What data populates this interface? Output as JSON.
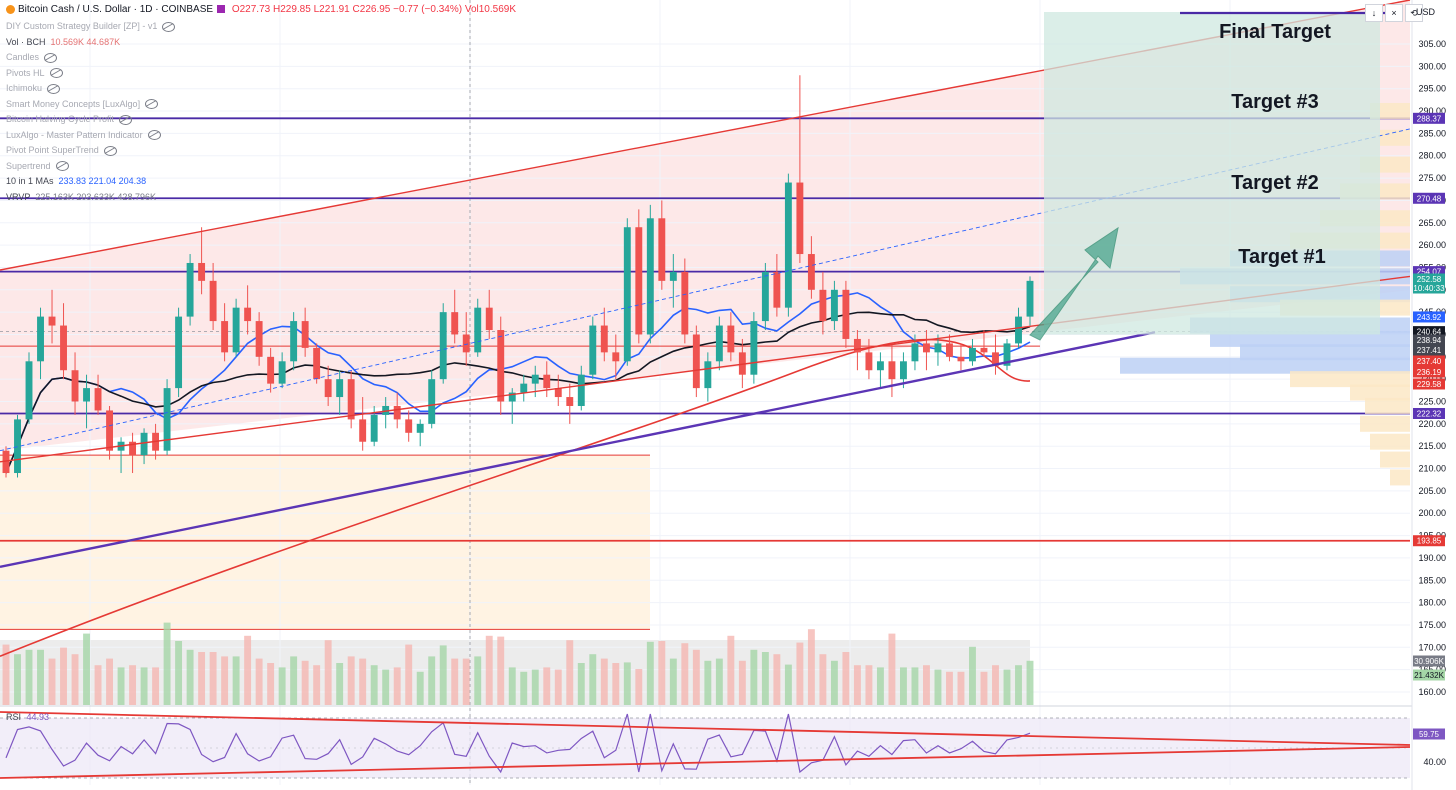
{
  "header": {
    "symbol": "Bitcoin Cash / U.S. Dollar · 1D · COINBASE",
    "open": "O227.73",
    "high": "H229.85",
    "low": "L221.91",
    "close": "C226.95",
    "change": "−0.77 (−0.34%)",
    "volume": "Vol10.569K"
  },
  "indicators": [
    {
      "name": "DIY Custom Strategy Builder [ZP] - v1",
      "values": ""
    },
    {
      "name": "Vol · BCH",
      "values": "10.569K  44.687K"
    },
    {
      "name": "Candles",
      "values": ""
    },
    {
      "name": "Pivots HL",
      "values": ""
    },
    {
      "name": "Ichimoku",
      "values": ""
    },
    {
      "name": "Smart Money Concepts [LuxAlgo]",
      "values": ""
    },
    {
      "name": "Bitcoin Halving Cycle Profit",
      "values": ""
    },
    {
      "name": "LuxAlgo - Master Pattern Indicator",
      "values": ""
    },
    {
      "name": "Pivot Point SuperTrend",
      "values": ""
    },
    {
      "name": "Supertrend",
      "values": ""
    },
    {
      "name": "10 in 1 MAs",
      "values": "233.83  221.04  204.38"
    },
    {
      "name": "VRVP",
      "values": "225.163K  203.633K  428.796K"
    }
  ],
  "toolbar": {
    "currency": "USD",
    "btn_down": "↓",
    "btn_close": "×",
    "btn_reset": "⟲"
  },
  "rsi_label": {
    "name": "RSI",
    "value": "44.93"
  },
  "chart_data": {
    "type": "candlestick",
    "title": "Bitcoin Cash / U.S. Dollar · 1D · COINBASE",
    "y_ticks": [
      305,
      300,
      295,
      290,
      285,
      280,
      275,
      270,
      265,
      260,
      255,
      250,
      245,
      240,
      235,
      230,
      225,
      220,
      215,
      210,
      205,
      200,
      195,
      190,
      185,
      180,
      175,
      170,
      165,
      160
    ],
    "rsi_ticks": [
      40
    ],
    "price_labels": [
      {
        "value": "288.37",
        "color": "#5b35b5"
      },
      {
        "value": "270.48",
        "color": "#5b35b5"
      },
      {
        "value": "254.07",
        "color": "#5b35b5"
      },
      {
        "value": "252.58",
        "color": "#26a69a"
      },
      {
        "value": "10:40:33",
        "color": "#26a69a"
      },
      {
        "value": "243.92",
        "color": "#2962ff"
      },
      {
        "value": "240.64",
        "color": "#131722"
      },
      {
        "value": "238.94",
        "color": "#434651"
      },
      {
        "value": "237.41",
        "color": "#434651"
      },
      {
        "value": "237.40",
        "color": "#e53935"
      },
      {
        "value": "236.19",
        "color": "#e53935"
      },
      {
        "value": "229.58",
        "color": "#e53935"
      },
      {
        "value": "222.32",
        "color": "#5b35b5"
      },
      {
        "value": "193.85",
        "color": "#e53935"
      },
      {
        "value": "30.906K",
        "color": "#787b86"
      },
      {
        "value": "21.432K",
        "color": "#a5d6a7"
      },
      {
        "value": "59.75",
        "color": "#7e57c2"
      }
    ],
    "horizontal_levels": [
      288.37,
      270.48,
      254.07,
      222.32
    ],
    "red_levels": [
      193.85
    ],
    "targets": [
      {
        "label": "Final Target",
        "price": 307
      },
      {
        "label": "Target #3",
        "price": 288.37
      },
      {
        "label": "Target #2",
        "price": 270.48
      },
      {
        "label": "Target #1",
        "price": 254.07
      }
    ],
    "candles_ohlc": [
      [
        214,
        215,
        208,
        209
      ],
      [
        209,
        222,
        208,
        221
      ],
      [
        221,
        236,
        220,
        234
      ],
      [
        234,
        246,
        230,
        244
      ],
      [
        244,
        250,
        238,
        242
      ],
      [
        242,
        247,
        230,
        232
      ],
      [
        232,
        236,
        222,
        225
      ],
      [
        225,
        231,
        219,
        228
      ],
      [
        228,
        231,
        222,
        223
      ],
      [
        223,
        224,
        212,
        214
      ],
      [
        214,
        217,
        209,
        216
      ],
      [
        216,
        218,
        209,
        213
      ],
      [
        213,
        219,
        211,
        218
      ],
      [
        218,
        220,
        212,
        214
      ],
      [
        214,
        230,
        213,
        228
      ],
      [
        228,
        246,
        226,
        244
      ],
      [
        244,
        258,
        242,
        256
      ],
      [
        256,
        264,
        249,
        252
      ],
      [
        252,
        256,
        241,
        243
      ],
      [
        243,
        247,
        234,
        236
      ],
      [
        236,
        248,
        235,
        246
      ],
      [
        246,
        251,
        240,
        243
      ],
      [
        243,
        245,
        233,
        235
      ],
      [
        235,
        237,
        227,
        229
      ],
      [
        229,
        236,
        228,
        234
      ],
      [
        234,
        245,
        232,
        243
      ],
      [
        243,
        246,
        235,
        237
      ],
      [
        237,
        238,
        229,
        230
      ],
      [
        230,
        233,
        224,
        226
      ],
      [
        226,
        232,
        222,
        230
      ],
      [
        230,
        232,
        219,
        221
      ],
      [
        221,
        226,
        214,
        216
      ],
      [
        216,
        224,
        215,
        222
      ],
      [
        222,
        226,
        219,
        224
      ],
      [
        224,
        227,
        219,
        221
      ],
      [
        221,
        223,
        216,
        218
      ],
      [
        218,
        221,
        215,
        220
      ],
      [
        220,
        232,
        219,
        230
      ],
      [
        230,
        247,
        229,
        245
      ],
      [
        245,
        250,
        238,
        240
      ],
      [
        240,
        245,
        233,
        236
      ],
      [
        236,
        248,
        235,
        246
      ],
      [
        246,
        250,
        239,
        241
      ],
      [
        241,
        244,
        222,
        225
      ],
      [
        225,
        228,
        220,
        227
      ],
      [
        227,
        231,
        225,
        229
      ],
      [
        229,
        233,
        226,
        231
      ],
      [
        231,
        234,
        226,
        228
      ],
      [
        228,
        231,
        224,
        226
      ],
      [
        226,
        229,
        220,
        224
      ],
      [
        224,
        233,
        223,
        231
      ],
      [
        231,
        244,
        230,
        242
      ],
      [
        242,
        246,
        234,
        236
      ],
      [
        236,
        240,
        230,
        234
      ],
      [
        234,
        266,
        233,
        264
      ],
      [
        264,
        268,
        238,
        240
      ],
      [
        240,
        269,
        238,
        266
      ],
      [
        266,
        270,
        250,
        252
      ],
      [
        252,
        258,
        246,
        254
      ],
      [
        254,
        257,
        238,
        240
      ],
      [
        240,
        242,
        226,
        228
      ],
      [
        228,
        236,
        225,
        234
      ],
      [
        234,
        244,
        232,
        242
      ],
      [
        242,
        245,
        234,
        236
      ],
      [
        236,
        239,
        228,
        231
      ],
      [
        231,
        245,
        229,
        243
      ],
      [
        243,
        256,
        241,
        254
      ],
      [
        254,
        258,
        244,
        246
      ],
      [
        246,
        276,
        244,
        274
      ],
      [
        274,
        298,
        256,
        258
      ],
      [
        258,
        262,
        248,
        250
      ],
      [
        250,
        254,
        240,
        243
      ],
      [
        243,
        252,
        241,
        250
      ],
      [
        250,
        252,
        237,
        239
      ],
      [
        239,
        241,
        232,
        236
      ],
      [
        236,
        239,
        230,
        232
      ],
      [
        232,
        236,
        228,
        234
      ],
      [
        234,
        238,
        226,
        230
      ],
      [
        230,
        236,
        228,
        234
      ],
      [
        234,
        240,
        232,
        238
      ],
      [
        238,
        241,
        232,
        236
      ],
      [
        236,
        240,
        233,
        238
      ],
      [
        238,
        240,
        234,
        235
      ],
      [
        235,
        238,
        232,
        234
      ],
      [
        234,
        239,
        233,
        237
      ],
      [
        237,
        241,
        235,
        236
      ],
      [
        236,
        240,
        231,
        233
      ],
      [
        233,
        239,
        232,
        238
      ],
      [
        238,
        246,
        237,
        244
      ],
      [
        244,
        253,
        242,
        252
      ]
    ],
    "x_ticks": []
  }
}
